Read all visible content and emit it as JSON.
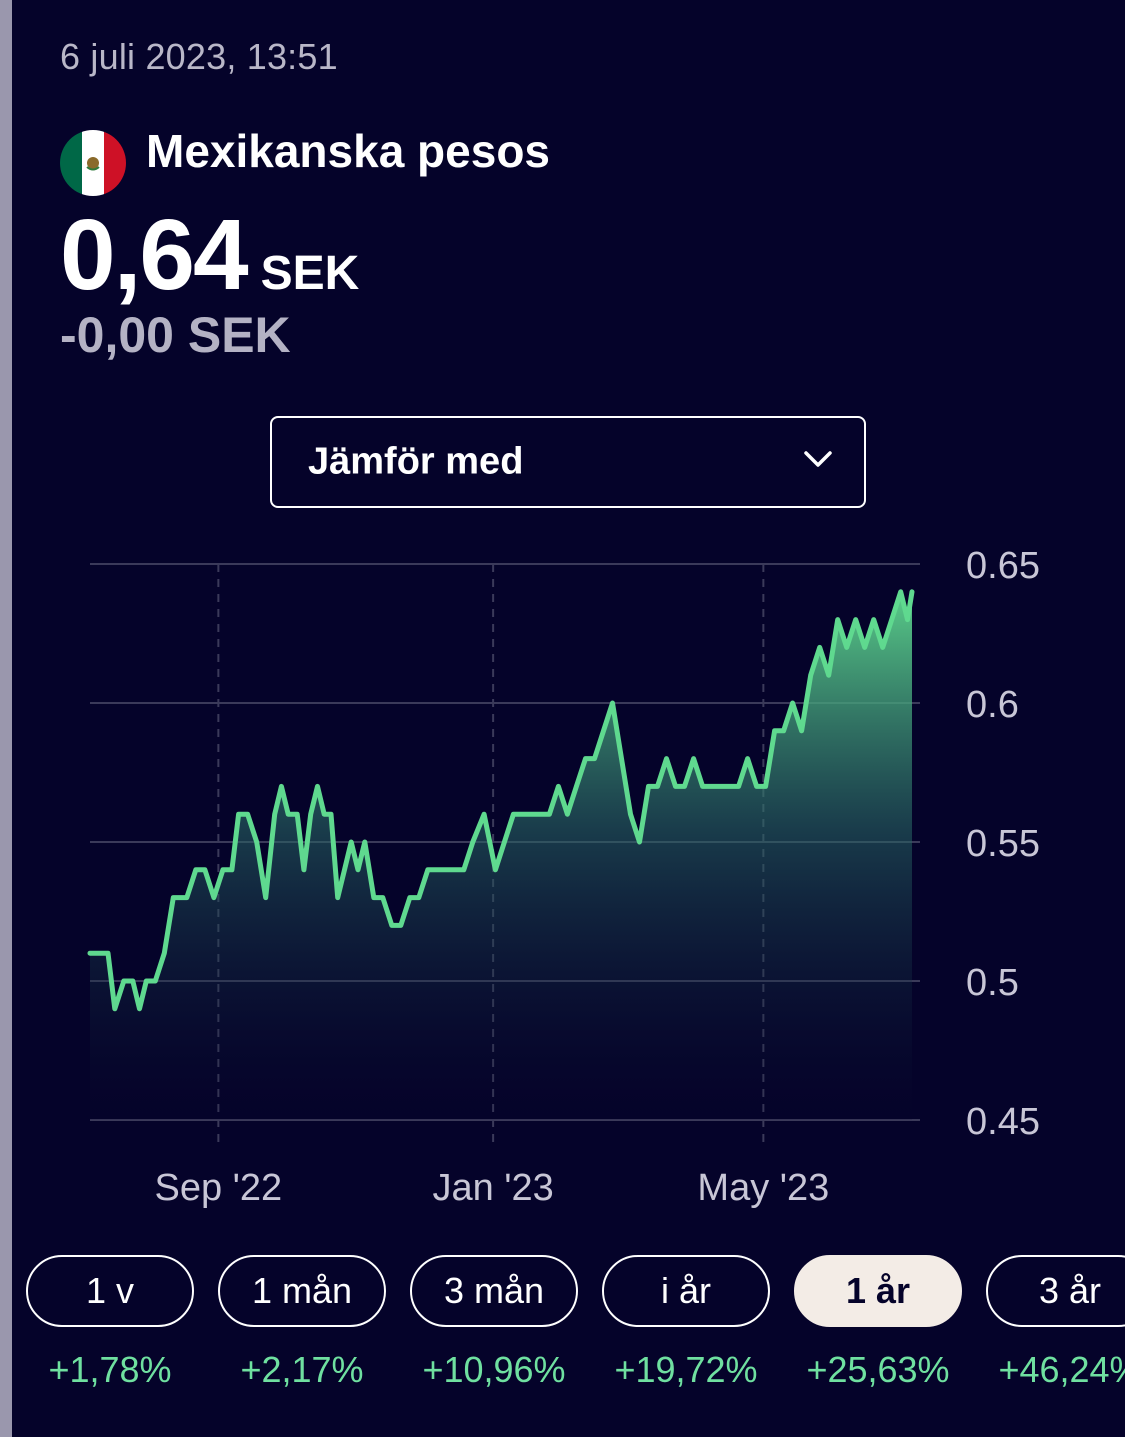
{
  "header": {
    "timestamp": "6 juli 2023, 13:51",
    "currency_name": "Mexikanska pesos",
    "flag_icon": "mexico-flag-icon",
    "price_value": "0,64",
    "price_unit": "SEK",
    "change": "-0,00 SEK"
  },
  "compare": {
    "label": "Jämför med",
    "icon": "chevron-down-icon"
  },
  "colors": {
    "background": "#05032a",
    "line": "#5fd98f",
    "grid": "#3b3a5a",
    "axis_text": "#c8c6d6",
    "positive": "#6fe0a0",
    "active_pill": "#f3ece6"
  },
  "chart_data": {
    "type": "area",
    "ylim": [
      0.45,
      0.65
    ],
    "y_ticks": [
      "0.65",
      "0.6",
      "0.55",
      "0.5",
      "0.45"
    ],
    "x_ticks": [
      "Sep '22",
      "Jan '23",
      "May '23"
    ],
    "x_tick_dates": [
      "2022-09-01",
      "2023-01-01",
      "2023-05-01"
    ],
    "grid": true,
    "x": [
      "2022-07-06",
      "2022-07-10",
      "2022-07-14",
      "2022-07-17",
      "2022-07-21",
      "2022-07-25",
      "2022-07-28",
      "2022-07-31",
      "2022-08-04",
      "2022-08-08",
      "2022-08-10",
      "2022-08-12",
      "2022-08-14",
      "2022-08-18",
      "2022-08-22",
      "2022-08-26",
      "2022-08-30",
      "2022-09-03",
      "2022-09-07",
      "2022-09-10",
      "2022-09-14",
      "2022-09-18",
      "2022-09-22",
      "2022-09-26",
      "2022-09-29",
      "2022-10-02",
      "2022-10-06",
      "2022-10-09",
      "2022-10-12",
      "2022-10-15",
      "2022-10-18",
      "2022-10-21",
      "2022-10-24",
      "2022-10-27",
      "2022-10-30",
      "2022-11-02",
      "2022-11-05",
      "2022-11-09",
      "2022-11-13",
      "2022-11-17",
      "2022-11-21",
      "2022-11-25",
      "2022-11-29",
      "2022-12-03",
      "2022-12-07",
      "2022-12-11",
      "2022-12-15",
      "2022-12-19",
      "2022-12-23",
      "2022-12-28",
      "2023-01-02",
      "2023-01-06",
      "2023-01-10",
      "2023-01-14",
      "2023-01-18",
      "2023-01-22",
      "2023-01-26",
      "2023-01-30",
      "2023-02-03",
      "2023-02-07",
      "2023-02-11",
      "2023-02-15",
      "2023-02-19",
      "2023-02-23",
      "2023-02-27",
      "2023-03-03",
      "2023-03-07",
      "2023-03-11",
      "2023-03-15",
      "2023-03-19",
      "2023-03-23",
      "2023-03-27",
      "2023-03-31",
      "2023-04-04",
      "2023-04-08",
      "2023-04-12",
      "2023-04-16",
      "2023-04-20",
      "2023-04-24",
      "2023-04-28",
      "2023-05-02",
      "2023-05-06",
      "2023-05-10",
      "2023-05-14",
      "2023-05-18",
      "2023-05-22",
      "2023-05-26",
      "2023-05-30",
      "2023-06-03",
      "2023-06-07",
      "2023-06-11",
      "2023-06-15",
      "2023-06-19",
      "2023-06-23",
      "2023-06-27",
      "2023-07-01",
      "2023-07-04",
      "2023-07-06"
    ],
    "values": [
      0.51,
      0.51,
      0.51,
      0.49,
      0.5,
      0.5,
      0.49,
      0.5,
      0.5,
      0.51,
      0.52,
      0.53,
      0.53,
      0.53,
      0.54,
      0.54,
      0.53,
      0.54,
      0.54,
      0.56,
      0.56,
      0.55,
      0.53,
      0.56,
      0.57,
      0.56,
      0.56,
      0.54,
      0.56,
      0.57,
      0.56,
      0.56,
      0.53,
      0.54,
      0.55,
      0.54,
      0.55,
      0.53,
      0.53,
      0.52,
      0.52,
      0.53,
      0.53,
      0.54,
      0.54,
      0.54,
      0.54,
      0.54,
      0.55,
      0.56,
      0.54,
      0.55,
      0.56,
      0.56,
      0.56,
      0.56,
      0.56,
      0.57,
      0.56,
      0.57,
      0.58,
      0.58,
      0.59,
      0.6,
      0.58,
      0.56,
      0.55,
      0.57,
      0.57,
      0.58,
      0.57,
      0.57,
      0.58,
      0.57,
      0.57,
      0.57,
      0.57,
      0.57,
      0.58,
      0.57,
      0.57,
      0.59,
      0.59,
      0.6,
      0.59,
      0.61,
      0.62,
      0.61,
      0.63,
      0.62,
      0.63,
      0.62,
      0.63,
      0.62,
      0.63,
      0.64,
      0.63,
      0.64
    ]
  },
  "periods": [
    {
      "label": "1 v",
      "change": "+1,78%",
      "active": false
    },
    {
      "label": "1 mån",
      "change": "+2,17%",
      "active": false
    },
    {
      "label": "3 mån",
      "change": "+10,96%",
      "active": false
    },
    {
      "label": "i år",
      "change": "+19,72%",
      "active": false
    },
    {
      "label": "1 år",
      "change": "+25,63%",
      "active": true
    },
    {
      "label": "3 år",
      "change": "+46,24%",
      "active": false
    }
  ]
}
